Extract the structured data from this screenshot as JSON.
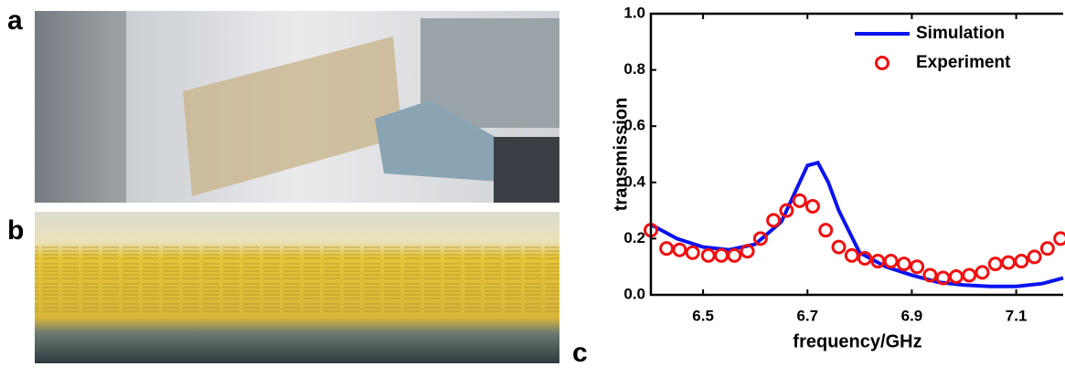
{
  "panel_labels": [
    "a",
    "b",
    "c"
  ],
  "chart_data": {
    "type": "line",
    "xlabel": "frequency/GHz",
    "ylabel": "transmission",
    "xlim": [
      6.4,
      7.19
    ],
    "ylim": [
      0,
      1
    ],
    "xticks": [
      6.5,
      6.7,
      6.9,
      7.1
    ],
    "yticks": [
      {
        "value": 0,
        "label": "0.0"
      },
      0.2,
      0.4,
      0.6,
      0.8,
      {
        "value": 1,
        "label": "1.0"
      }
    ],
    "legend": "upper right",
    "series": [
      {
        "name": "Simulation",
        "style": "line",
        "color": "#0a14f0",
        "x": [
          6.4,
          6.45,
          6.5,
          6.55,
          6.6,
          6.65,
          6.68,
          6.7,
          6.72,
          6.74,
          6.76,
          6.8,
          6.85,
          6.9,
          6.95,
          7.0,
          7.05,
          7.1,
          7.15,
          7.19
        ],
        "values": [
          0.25,
          0.2,
          0.17,
          0.16,
          0.18,
          0.26,
          0.38,
          0.46,
          0.47,
          0.4,
          0.3,
          0.15,
          0.1,
          0.07,
          0.045,
          0.035,
          0.03,
          0.03,
          0.04,
          0.06
        ]
      },
      {
        "name": "Experiment",
        "style": "circle",
        "color": "#f01010",
        "x": [
          6.4,
          6.43,
          6.455,
          6.48,
          6.51,
          6.535,
          6.56,
          6.585,
          6.61,
          6.635,
          6.66,
          6.685,
          6.71,
          6.735,
          6.76,
          6.785,
          6.81,
          6.835,
          6.86,
          6.885,
          6.91,
          6.935,
          6.96,
          6.985,
          7.01,
          7.035,
          7.06,
          7.085,
          7.11,
          7.135,
          7.16,
          7.185
        ],
        "values": [
          0.23,
          0.165,
          0.16,
          0.15,
          0.14,
          0.14,
          0.14,
          0.155,
          0.2,
          0.265,
          0.3,
          0.335,
          0.315,
          0.23,
          0.17,
          0.14,
          0.13,
          0.12,
          0.12,
          0.11,
          0.1,
          0.07,
          0.06,
          0.065,
          0.07,
          0.08,
          0.11,
          0.115,
          0.12,
          0.135,
          0.165,
          0.2
        ]
      }
    ]
  }
}
